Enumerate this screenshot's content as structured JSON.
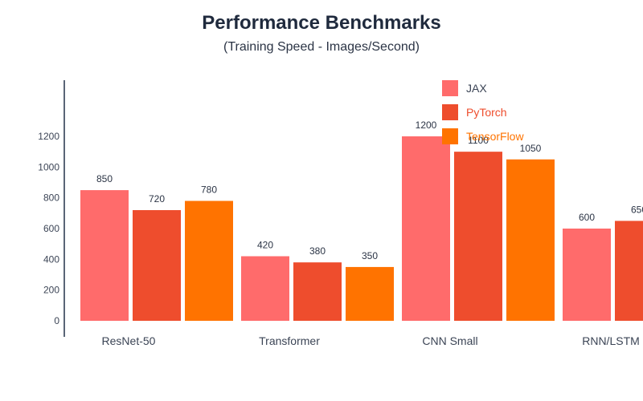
{
  "chart_data": {
    "type": "bar",
    "title": "Performance Benchmarks",
    "subtitle": "(Training Speed - Images/Second)",
    "xlabel": "",
    "ylabel": "",
    "ylim": [
      0,
      1200
    ],
    "yticks": [
      0,
      200,
      400,
      600,
      800,
      1000,
      1200
    ],
    "grid": false,
    "legend_position": "top-right",
    "categories": [
      "ResNet-50",
      "Transformer",
      "CNN Small",
      "RNN/LSTM"
    ],
    "series": [
      {
        "name": "JAX",
        "color": "#ff6b6b",
        "label_color": "#3b4455",
        "values": [
          850,
          420,
          1200,
          600
        ]
      },
      {
        "name": "PyTorch",
        "color": "#ee4d2d",
        "label_color": "#ee4d2d",
        "values": [
          720,
          380,
          1100,
          650
        ]
      },
      {
        "name": "TensorFlow",
        "color": "#ff7300",
        "label_color": "#ff7300",
        "values": [
          780,
          350,
          1050,
          null
        ]
      }
    ]
  }
}
